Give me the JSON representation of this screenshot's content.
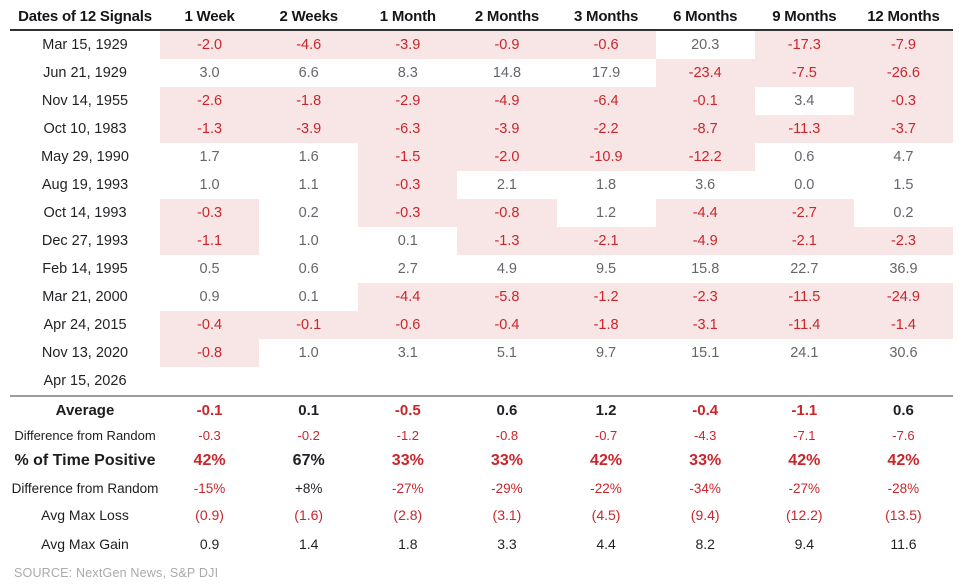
{
  "chart_data": {
    "type": "table",
    "title": "Dates of 12 Signals",
    "columns": [
      "Dates of 12 Signals",
      "1 Week",
      "2 Weeks",
      "1 Month",
      "2 Months",
      "3 Months",
      "6 Months",
      "9 Months",
      "12 Months"
    ],
    "rows": [
      {
        "date": "Mar 15, 1929",
        "values": [
          "-2.0",
          "-4.6",
          "-3.9",
          "-0.9",
          "-0.6",
          "20.3",
          "-17.3",
          "-7.9"
        ]
      },
      {
        "date": "Jun 21, 1929",
        "values": [
          "3.0",
          "6.6",
          "8.3",
          "14.8",
          "17.9",
          "-23.4",
          "-7.5",
          "-26.6"
        ]
      },
      {
        "date": "Nov 14, 1955",
        "values": [
          "-2.6",
          "-1.8",
          "-2.9",
          "-4.9",
          "-6.4",
          "-0.1",
          "3.4",
          "-0.3"
        ]
      },
      {
        "date": "Oct 10, 1983",
        "values": [
          "-1.3",
          "-3.9",
          "-6.3",
          "-3.9",
          "-2.2",
          "-8.7",
          "-11.3",
          "-3.7"
        ]
      },
      {
        "date": "May 29, 1990",
        "values": [
          "1.7",
          "1.6",
          "-1.5",
          "-2.0",
          "-10.9",
          "-12.2",
          "0.6",
          "4.7"
        ]
      },
      {
        "date": "Aug 19, 1993",
        "values": [
          "1.0",
          "1.1",
          "-0.3",
          "2.1",
          "1.8",
          "3.6",
          "0.0",
          "1.5"
        ]
      },
      {
        "date": "Oct 14, 1993",
        "values": [
          "-0.3",
          "0.2",
          "-0.3",
          "-0.8",
          "1.2",
          "-4.4",
          "-2.7",
          "0.2"
        ]
      },
      {
        "date": "Dec 27, 1993",
        "values": [
          "-1.1",
          "1.0",
          "0.1",
          "-1.3",
          "-2.1",
          "-4.9",
          "-2.1",
          "-2.3"
        ]
      },
      {
        "date": "Feb 14, 1995",
        "values": [
          "0.5",
          "0.6",
          "2.7",
          "4.9",
          "9.5",
          "15.8",
          "22.7",
          "36.9"
        ]
      },
      {
        "date": "Mar 21, 2000",
        "values": [
          "0.9",
          "0.1",
          "-4.4",
          "-5.8",
          "-1.2",
          "-2.3",
          "-11.5",
          "-24.9"
        ]
      },
      {
        "date": "Apr 24, 2015",
        "values": [
          "-0.4",
          "-0.1",
          "-0.6",
          "-0.4",
          "-1.8",
          "-3.1",
          "-11.4",
          "-1.4"
        ]
      },
      {
        "date": "Nov 13, 2020",
        "values": [
          "-0.8",
          "1.0",
          "3.1",
          "5.1",
          "9.7",
          "15.1",
          "24.1",
          "30.6"
        ]
      },
      {
        "date": "Apr 15, 2026",
        "values": [
          "",
          "",
          "",
          "",
          "",
          "",
          "",
          ""
        ]
      }
    ],
    "summary_rows": [
      {
        "label": "Average",
        "style": "avg",
        "values": [
          "-0.1",
          "0.1",
          "-0.5",
          "0.6",
          "1.2",
          "-0.4",
          "-1.1",
          "0.6"
        ]
      },
      {
        "label": "Difference from Random",
        "style": "diff",
        "values": [
          "-0.3",
          "-0.2",
          "-1.2",
          "-0.8",
          "-0.7",
          "-4.3",
          "-7.1",
          "-7.6"
        ]
      },
      {
        "label": "% of Time Positive",
        "style": "pct",
        "values": [
          "42%",
          "67%",
          "33%",
          "33%",
          "42%",
          "33%",
          "42%",
          "42%"
        ]
      },
      {
        "label": "Difference from Random",
        "style": "diff2",
        "values": [
          "-15%",
          "+8%",
          "-27%",
          "-29%",
          "-22%",
          "-34%",
          "-27%",
          "-28%"
        ]
      },
      {
        "label": "Avg Max Loss",
        "style": "loss",
        "values": [
          "(0.9)",
          "(1.6)",
          "(2.8)",
          "(3.1)",
          "(4.5)",
          "(9.4)",
          "(12.2)",
          "(13.5)"
        ]
      },
      {
        "label": "Avg Max Gain",
        "style": "gain",
        "values": [
          "0.9",
          "1.4",
          "1.8",
          "3.3",
          "4.4",
          "8.2",
          "9.4",
          "11.6"
        ]
      }
    ],
    "source": "SOURCE: NextGen News, S&P DJI",
    "colors": {
      "negative_cell_bg": "#f8e5e5",
      "negative_text": "#c9262c",
      "positive_text": "#63666b",
      "label_text": "#1f2124",
      "header_text": "#141517",
      "source_text": "#a8aaac",
      "header_rule": "#303134",
      "summary_rule": "#9c9da0"
    },
    "layout": {
      "grid": "off",
      "legend": "none"
    }
  }
}
